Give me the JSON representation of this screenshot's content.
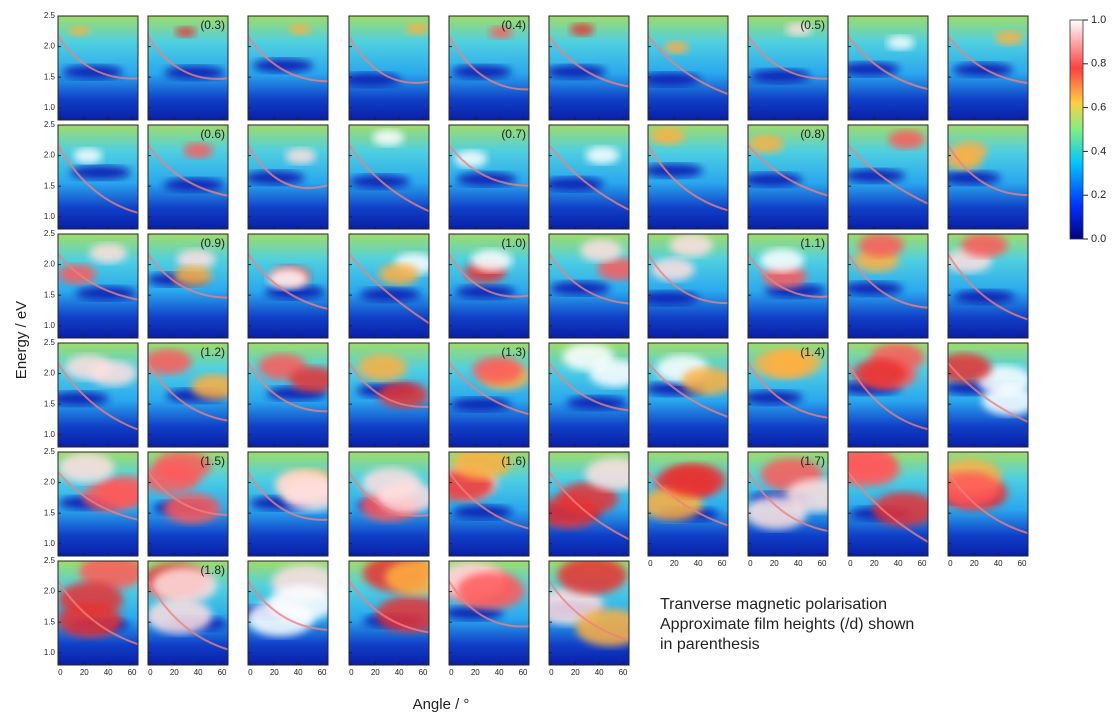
{
  "chart_data": {
    "type": "heatmap-grid",
    "y_label": "Energy / eV",
    "x_label": "Angle / °",
    "annotation": [
      "Tranverse magnetic polarisation",
      "Approximate film heights (/d) shown",
      "in parenthesis"
    ],
    "panel_labels": [
      null,
      "(0.3)",
      null,
      null,
      "(0.4)",
      null,
      null,
      "(0.5)",
      null,
      null,
      null,
      "(0.6)",
      null,
      null,
      "(0.7)",
      null,
      null,
      "(0.8)",
      null,
      null,
      null,
      "(0.9)",
      null,
      null,
      "(1.0)",
      null,
      null,
      "(1.1)",
      null,
      null,
      null,
      "(1.2)",
      null,
      null,
      "(1.3)",
      null,
      null,
      "(1.4)",
      null,
      null,
      null,
      "(1.5)",
      null,
      null,
      "(1.6)",
      null,
      null,
      "(1.7)",
      null,
      null,
      null,
      "(1.8)",
      null,
      null,
      null,
      null
    ],
    "ylim": [
      0.8,
      2.5
    ],
    "yticks": [
      {
        "value": 1,
        "label": "1.0"
      },
      1.5,
      {
        "value": 2,
        "label": "2.0"
      },
      2.5
    ],
    "xlim": [
      -2,
      65
    ],
    "xticks": [
      0,
      20,
      40,
      60
    ],
    "colorbar": {
      "lim": [
        0,
        1
      ],
      "ticks": [
        {
          "value": 0,
          "label": "0.0"
        },
        0.2,
        0.4,
        0.6,
        0.8,
        {
          "value": 1,
          "label": "1.0"
        }
      ]
    }
  }
}
